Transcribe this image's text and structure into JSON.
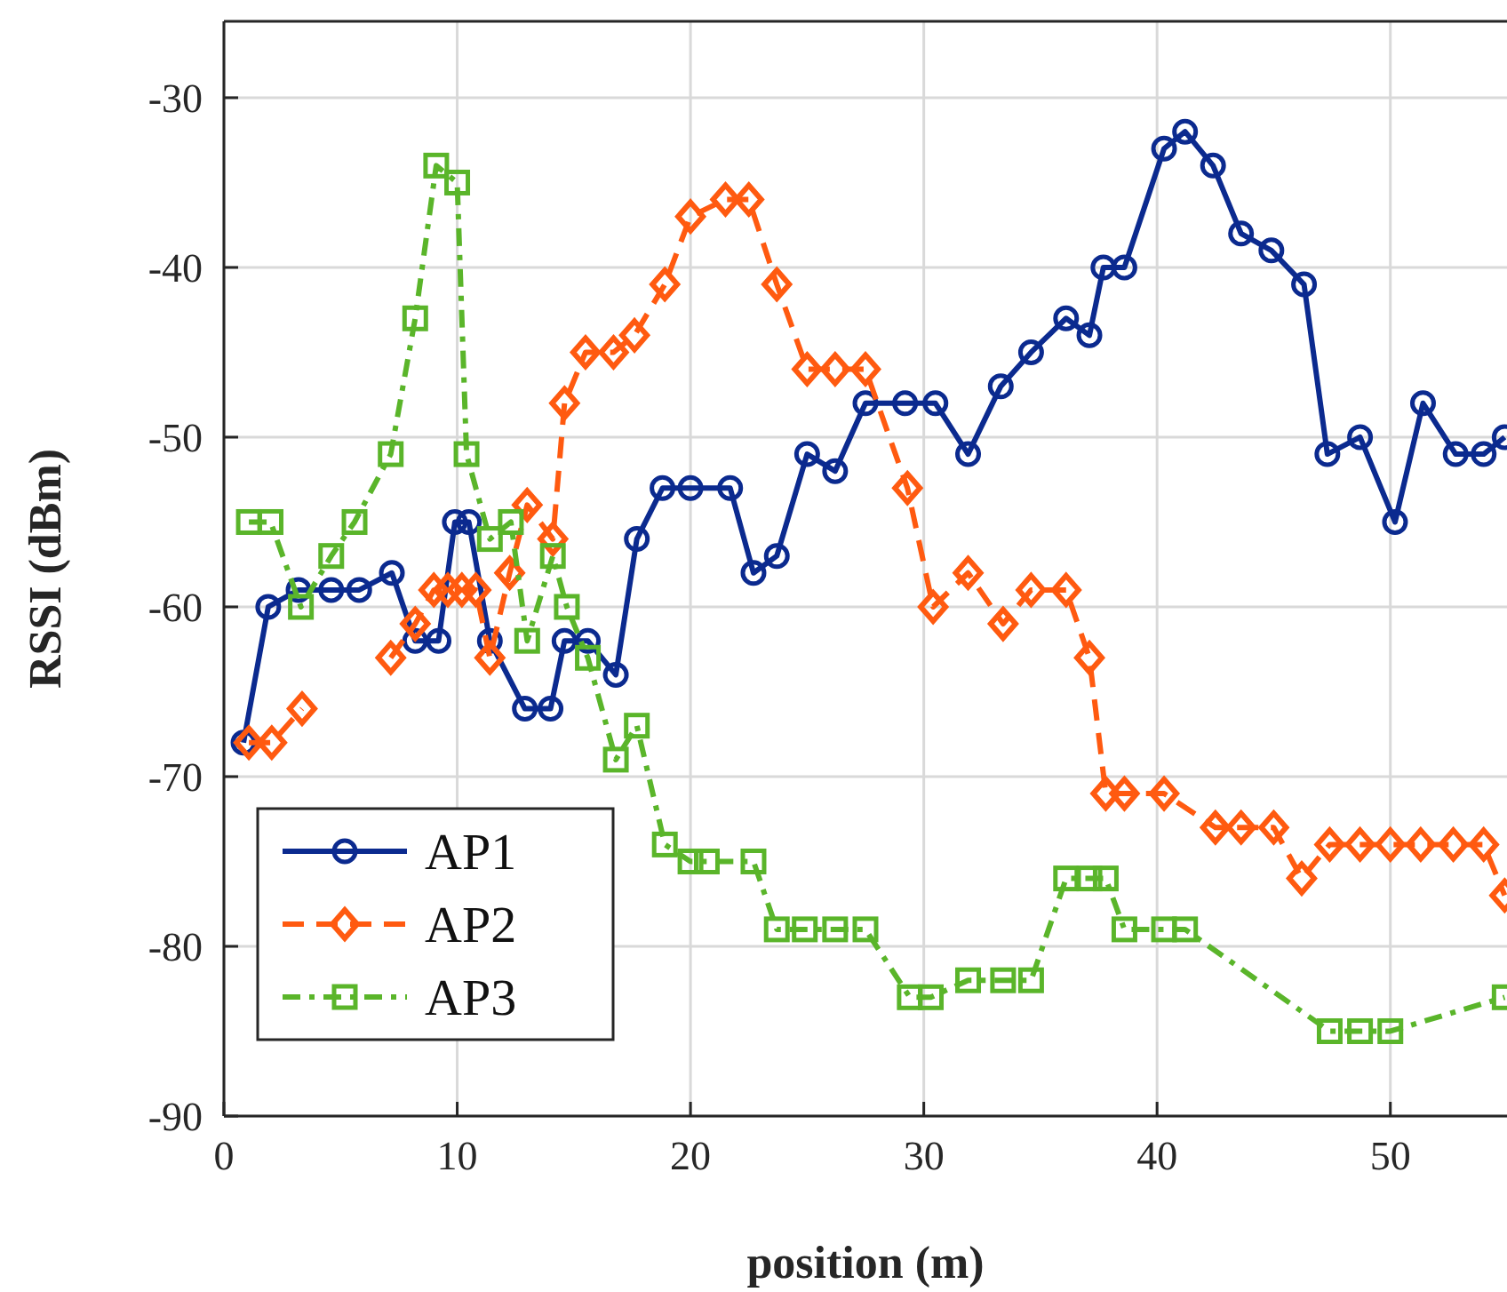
{
  "chart_data": {
    "type": "line",
    "xlabel": "position (m)",
    "ylabel": "RSSI (dBm)",
    "xlim": [
      0,
      55
    ],
    "ylim": [
      -90,
      -25.5
    ],
    "xticks": [
      0,
      10,
      20,
      30,
      40,
      50
    ],
    "yticks": [
      -90,
      -80,
      -70,
      -60,
      -50,
      -40,
      -30
    ],
    "grid": true,
    "legend": "bottom left",
    "series": [
      {
        "name": "AP1",
        "color": "#0b2a8f",
        "marker": "circle",
        "line_style": "solid",
        "x": [
          0.84,
          1.9,
          3.2,
          4.6,
          5.8,
          7.2,
          8.2,
          9.2,
          9.9,
          10.5,
          11.4,
          12.9,
          14.0,
          14.6,
          15.6,
          16.8,
          17.7,
          18.8,
          20.0,
          21.7,
          22.7,
          23.7,
          25.0,
          26.2,
          27.5,
          29.2,
          30.5,
          31.9,
          33.3,
          34.6,
          36.1,
          37.1,
          37.7,
          38.6,
          40.3,
          41.2,
          42.4,
          43.6,
          44.9,
          46.3,
          47.3,
          48.7,
          50.2,
          51.4,
          52.8,
          54.0,
          54.9
        ],
        "values": [
          -68,
          -60,
          -59,
          -59,
          -59,
          -58,
          -62,
          -62,
          -55,
          -55,
          -62,
          -66,
          -66,
          -62,
          -62,
          -64,
          -56,
          -53,
          -53,
          -53,
          -58,
          -57,
          -51,
          -52,
          -48,
          -48,
          -48,
          -51,
          -47,
          -45,
          -43,
          -44,
          -40,
          -40,
          -33,
          -32,
          -34,
          -38,
          -39,
          -41,
          -51,
          -50,
          -55,
          -48,
          -51,
          -51,
          -50
        ]
      },
      {
        "name": "AP2",
        "color": "#ff5a10",
        "marker": "diamond",
        "line_style": "dashed",
        "x": [
          1.07,
          2.05,
          3.35,
          5.1,
          7.15,
          8.2,
          9.0,
          9.6,
          10.2,
          10.8,
          11.4,
          12.25,
          13.0,
          14.1,
          14.6,
          15.5,
          16.7,
          17.6,
          18.9,
          20.0,
          21.5,
          22.5,
          23.7,
          25.0,
          26.2,
          27.5,
          29.3,
          30.4,
          31.9,
          33.4,
          34.6,
          36.1,
          37.1,
          37.8,
          38.6,
          40.3,
          42.5,
          43.6,
          45.0,
          46.2,
          47.4,
          48.7,
          50.0,
          51.3,
          52.7,
          54.0,
          54.9
        ],
        "values": [
          -68,
          -68,
          -66,
          null,
          -63,
          -61,
          -59,
          -59,
          -59,
          -59,
          -63,
          -58,
          -54,
          -56,
          -48,
          -45,
          -45,
          -44,
          -41,
          -37,
          -36,
          -36,
          -41,
          -46,
          -46,
          -46,
          -53,
          -60,
          -58,
          -61,
          -59,
          -59,
          -63,
          -71,
          -71,
          -71,
          -73,
          -73,
          -73,
          -76,
          -74,
          -74,
          -74,
          -74,
          -74,
          -74,
          -77
        ]
      },
      {
        "name": "AP3",
        "color": "#5ab52a",
        "marker": "square",
        "line_style": "dashdot",
        "x": [
          1.07,
          2.0,
          3.3,
          4.6,
          5.6,
          7.15,
          8.2,
          9.1,
          10.0,
          10.4,
          11.4,
          12.3,
          13.0,
          14.1,
          14.7,
          15.6,
          16.8,
          17.7,
          18.9,
          20.0,
          20.7,
          22.7,
          23.7,
          24.9,
          26.2,
          27.5,
          29.4,
          30.3,
          31.9,
          33.4,
          34.6,
          36.1,
          37.1,
          37.8,
          38.6,
          40.3,
          41.2,
          47.4,
          48.7,
          50.0,
          54.9
        ],
        "values": [
          -55,
          -55,
          -60,
          -57,
          -55,
          -51,
          -43,
          -34,
          -35,
          -51,
          -56,
          -55,
          -62,
          -57,
          -60,
          -63,
          -69,
          -67,
          -74,
          -75,
          -75,
          -75,
          -79,
          -79,
          -79,
          -79,
          -83,
          -83,
          -82,
          -82,
          -82,
          -76,
          -76,
          -76,
          -79,
          -79,
          -79,
          -85,
          -85,
          -85,
          -83
        ]
      }
    ]
  }
}
